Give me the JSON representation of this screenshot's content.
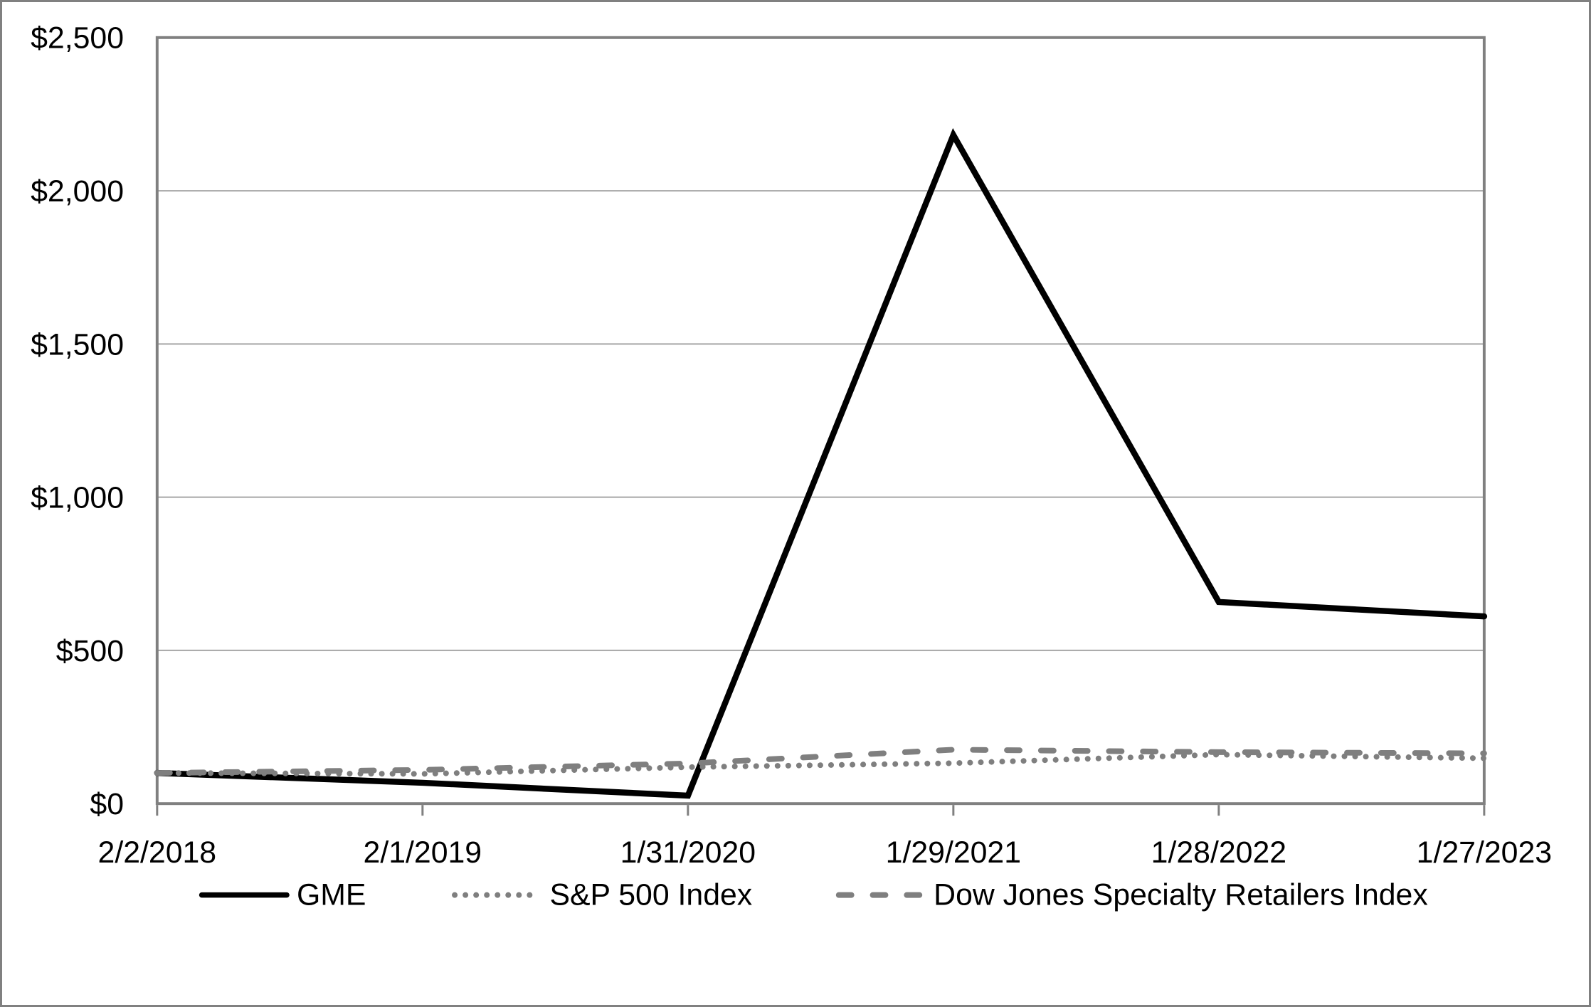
{
  "figure": {
    "background": "#ffffff",
    "outer_border_color": "#808080"
  },
  "chart_data": {
    "type": "line",
    "title": "",
    "xlabel": "",
    "ylabel": "",
    "x_tick_labels": [
      "2/2/2018",
      "2/1/2019",
      "1/31/2020",
      "1/29/2021",
      "1/28/2022",
      "1/27/2023"
    ],
    "y_tick_labels": [
      "$0",
      "$500",
      "$1,000",
      "$1,500",
      "$2,000",
      "$2,500"
    ],
    "ylim": [
      0,
      2500
    ],
    "y_gridline_step": 500,
    "grid": "horizontal-only",
    "legend_position": "bottom-center",
    "colors": {
      "gridline": "#a6a6a6",
      "plot_border": "#808080",
      "tick_mark": "#808080",
      "axis_text": "#000000",
      "gray_series": "#7f7f7f",
      "black_series": "#000000"
    },
    "series": [
      {
        "name": "GME",
        "color": "#000000",
        "style": "solid",
        "values": [
          100,
          68,
          26,
          2182,
          658,
          611
        ]
      },
      {
        "name": "S&P 500 Index",
        "color": "#7f7f7f",
        "style": "dotted",
        "values": [
          100,
          97,
          119,
          132,
          160,
          148
        ]
      },
      {
        "name": "Dow Jones Specialty Retailers Index",
        "color": "#7f7f7f",
        "style": "dashed",
        "values": [
          100,
          110,
          131,
          176,
          168,
          164
        ]
      }
    ]
  }
}
